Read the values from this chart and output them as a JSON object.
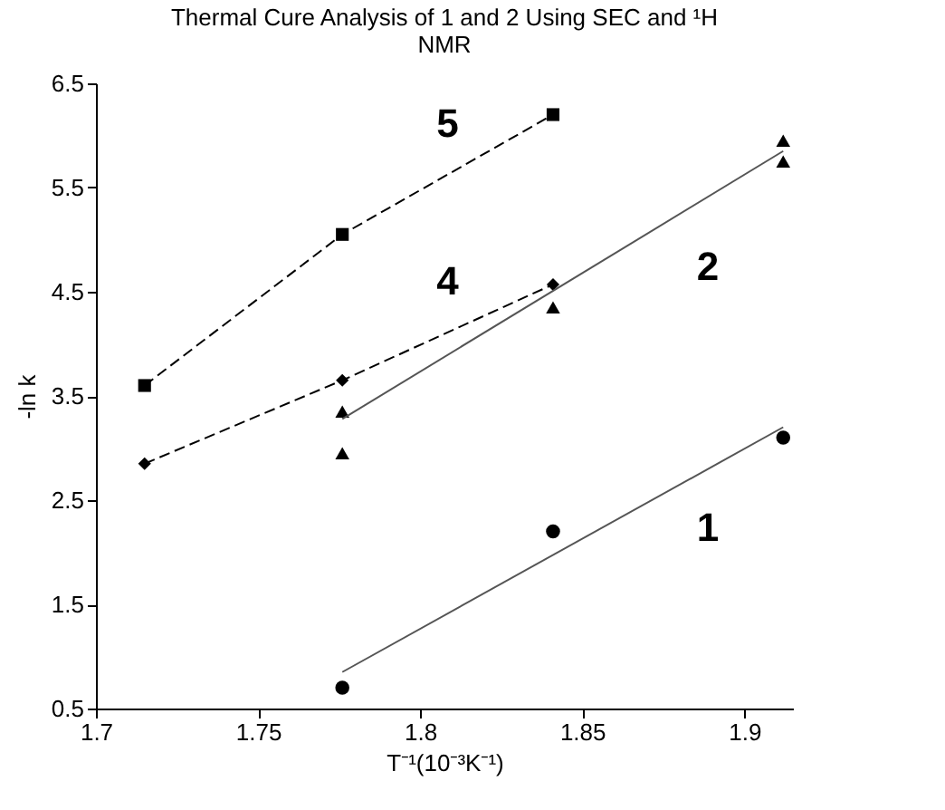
{
  "chart_data": {
    "type": "line",
    "title": "Thermal Cure Analysis of 1 and 2 Using SEC and ¹H NMR",
    "xlabel": "T⁻¹(10⁻³K⁻¹)",
    "ylabel": "-ln k",
    "xlim": [
      1.7,
      1.915
    ],
    "xticks": [
      1.7,
      1.75,
      1.8,
      1.85,
      1.9
    ],
    "ylim": [
      0.5,
      6.5
    ],
    "yticks": [
      0.5,
      1.5,
      2.5,
      3.5,
      4.5,
      5.5,
      6.5
    ],
    "grid": false,
    "series": [
      {
        "name": "5",
        "marker": "square",
        "line_style": "dashed",
        "color": "#000000",
        "x": [
          1.715,
          1.776,
          1.841
        ],
        "values": [
          3.6,
          5.05,
          6.2
        ]
      },
      {
        "name": "4",
        "marker": "diamond",
        "line_style": "dashed",
        "color": "#000000",
        "x": [
          1.715,
          1.776,
          1.841
        ],
        "values": [
          2.85,
          3.65,
          4.57
        ]
      },
      {
        "name": "2",
        "type": "scatter",
        "marker": "triangle",
        "color": "#000000",
        "x": [
          1.776,
          1.841,
          1.912
        ],
        "values": [
          3.35,
          4.35,
          5.95
        ]
      },
      {
        "type": "scatter",
        "marker": "triangle",
        "color": "#000000",
        "x": [
          1.776,
          1.912
        ],
        "values": [
          2.95,
          5.75
        ]
      },
      {
        "marker": "none",
        "line_style": "solid",
        "color": "#555555",
        "x": [
          1.776,
          1.912
        ],
        "values": [
          3.28,
          5.85
        ]
      },
      {
        "name": "1",
        "type": "scatter",
        "marker": "circle",
        "color": "#000000",
        "x": [
          1.776,
          1.841,
          1.912
        ],
        "values": [
          0.7,
          2.2,
          3.1
        ]
      },
      {
        "marker": "none",
        "line_style": "solid",
        "color": "#555555",
        "x": [
          1.776,
          1.912
        ],
        "values": [
          0.85,
          3.2
        ]
      }
    ]
  }
}
